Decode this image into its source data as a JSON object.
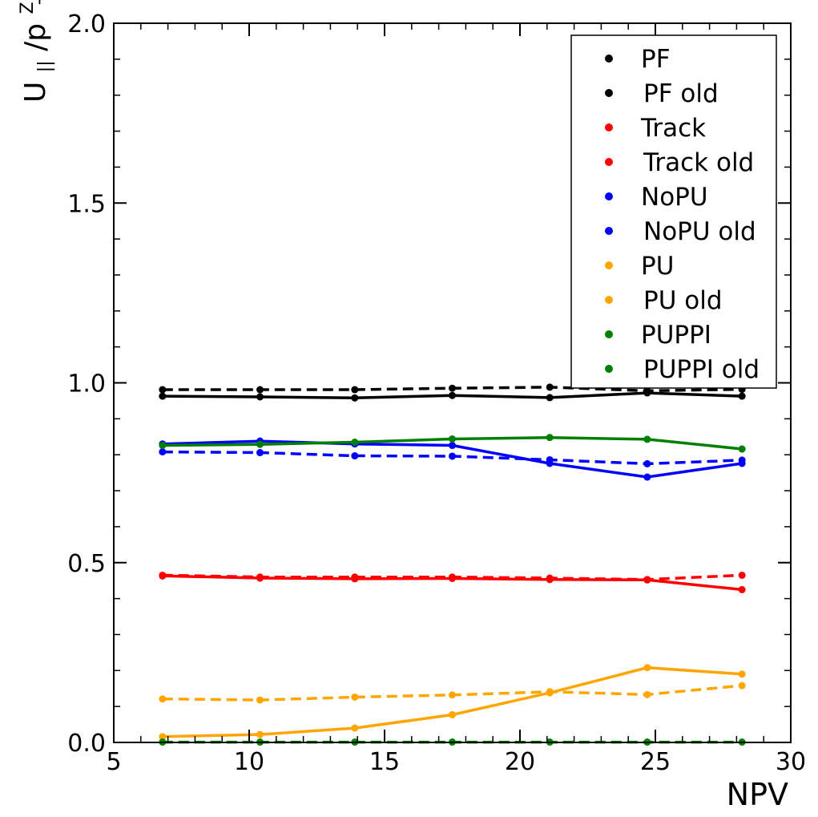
{
  "chart_data": {
    "type": "line",
    "title": "",
    "xlabel": "NPV",
    "ylabel_main": "U",
    "ylabel_sub": "||",
    "ylabel_mid": "/p",
    "ylabel_sup": "Z",
    "ylabel_sub2": "T",
    "xlim": [
      5,
      30
    ],
    "ylim": [
      0,
      2
    ],
    "xticks": [
      "5",
      "10",
      "15",
      "20",
      "25",
      "30"
    ],
    "yticks": [
      "0.0",
      "0.5",
      "1.0",
      "1.5",
      "2.0"
    ],
    "grid": false,
    "legend_position": "top-right",
    "x": [
      6.8,
      10.4,
      13.9,
      17.5,
      21.1,
      24.7,
      28.2
    ],
    "series": [
      {
        "name": "PF",
        "color": "#000000",
        "style": "solid",
        "values": [
          0.963,
          0.961,
          0.958,
          0.965,
          0.959,
          0.972,
          0.963
        ]
      },
      {
        "name": "PF old",
        "color": "#000000",
        "style": "dashed",
        "values": [
          0.981,
          0.981,
          0.981,
          0.985,
          0.988,
          0.978,
          0.982
        ]
      },
      {
        "name": "Track",
        "color": "#ff0000",
        "style": "solid",
        "values": [
          0.463,
          0.457,
          0.455,
          0.456,
          0.453,
          0.452,
          0.425
        ]
      },
      {
        "name": "Track old",
        "color": "#ff0000",
        "style": "dashed",
        "values": [
          0.465,
          0.46,
          0.46,
          0.46,
          0.457,
          0.453,
          0.465
        ]
      },
      {
        "name": "NoPU",
        "color": "#0000ff",
        "style": "solid",
        "values": [
          0.83,
          0.838,
          0.83,
          0.826,
          0.776,
          0.738,
          0.776
        ]
      },
      {
        "name": "NoPU old",
        "color": "#0000ff",
        "style": "dashed",
        "values": [
          0.808,
          0.806,
          0.797,
          0.796,
          0.786,
          0.775,
          0.785
        ]
      },
      {
        "name": "PU",
        "color": "#ffa500",
        "style": "solid",
        "values": [
          0.016,
          0.022,
          0.04,
          0.077,
          0.138,
          0.208,
          0.19
        ]
      },
      {
        "name": "PU old",
        "color": "#ffa500",
        "style": "dashed",
        "values": [
          0.121,
          0.118,
          0.126,
          0.132,
          0.141,
          0.133,
          0.158
        ]
      },
      {
        "name": "PUPPI",
        "color": "#008000",
        "style": "solid",
        "values": [
          0.826,
          0.829,
          0.835,
          0.844,
          0.848,
          0.843,
          0.816
        ]
      },
      {
        "name": "PUPPI old",
        "color": "#008000",
        "style": "dashed",
        "values": [
          0.001,
          0.001,
          0.001,
          0.001,
          0.001,
          0.001,
          0.001
        ]
      }
    ]
  }
}
